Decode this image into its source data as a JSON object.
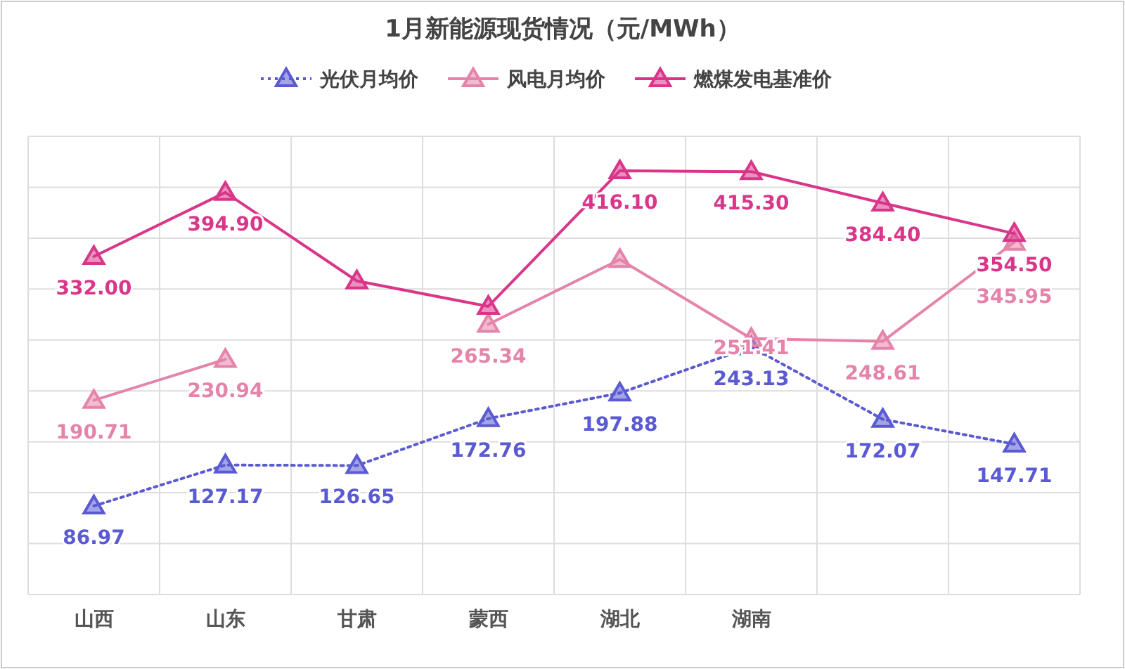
{
  "chart_data": {
    "type": "line",
    "title": "1月新能源现货情况（元/MWh）",
    "categories": [
      "山西",
      "山东",
      "甘肃",
      "蒙西",
      "湖北",
      "湖南",
      null,
      null
    ],
    "series": [
      {
        "name": "光伏月均价",
        "color": "#5a5ad2",
        "line_style": "dotted",
        "values": [
          86.97,
          127.17,
          126.65,
          172.76,
          197.88,
          243.13,
          172.07,
          147.71
        ],
        "value_labels": [
          "86.97",
          "127.17",
          "126.65",
          "172.76",
          "197.88",
          "243.13",
          "172.07",
          "147.71"
        ]
      },
      {
        "name": "风电月均价",
        "color": "#e584aa",
        "line_style": "solid",
        "values": [
          190.71,
          230.94,
          null,
          265.34,
          329,
          251.41,
          248.61,
          345.95
        ],
        "value_labels": [
          "190.71",
          "230.94",
          null,
          "265.34",
          null,
          "251.41",
          "248.61",
          "345.95"
        ]
      },
      {
        "name": "燃煤发电基准价",
        "color": "#d9368a",
        "line_style": "solid",
        "values": [
          332.0,
          394.9,
          308,
          283,
          416.1,
          415.3,
          384.4,
          354.5
        ],
        "value_labels": [
          "332.00",
          "394.90",
          null,
          null,
          "416.10",
          "415.30",
          "384.40",
          "354.50"
        ]
      }
    ],
    "ylim": [
      0,
      450
    ],
    "grid": true,
    "legend": "top",
    "marker": "triangle",
    "tick_labels": "x"
  }
}
